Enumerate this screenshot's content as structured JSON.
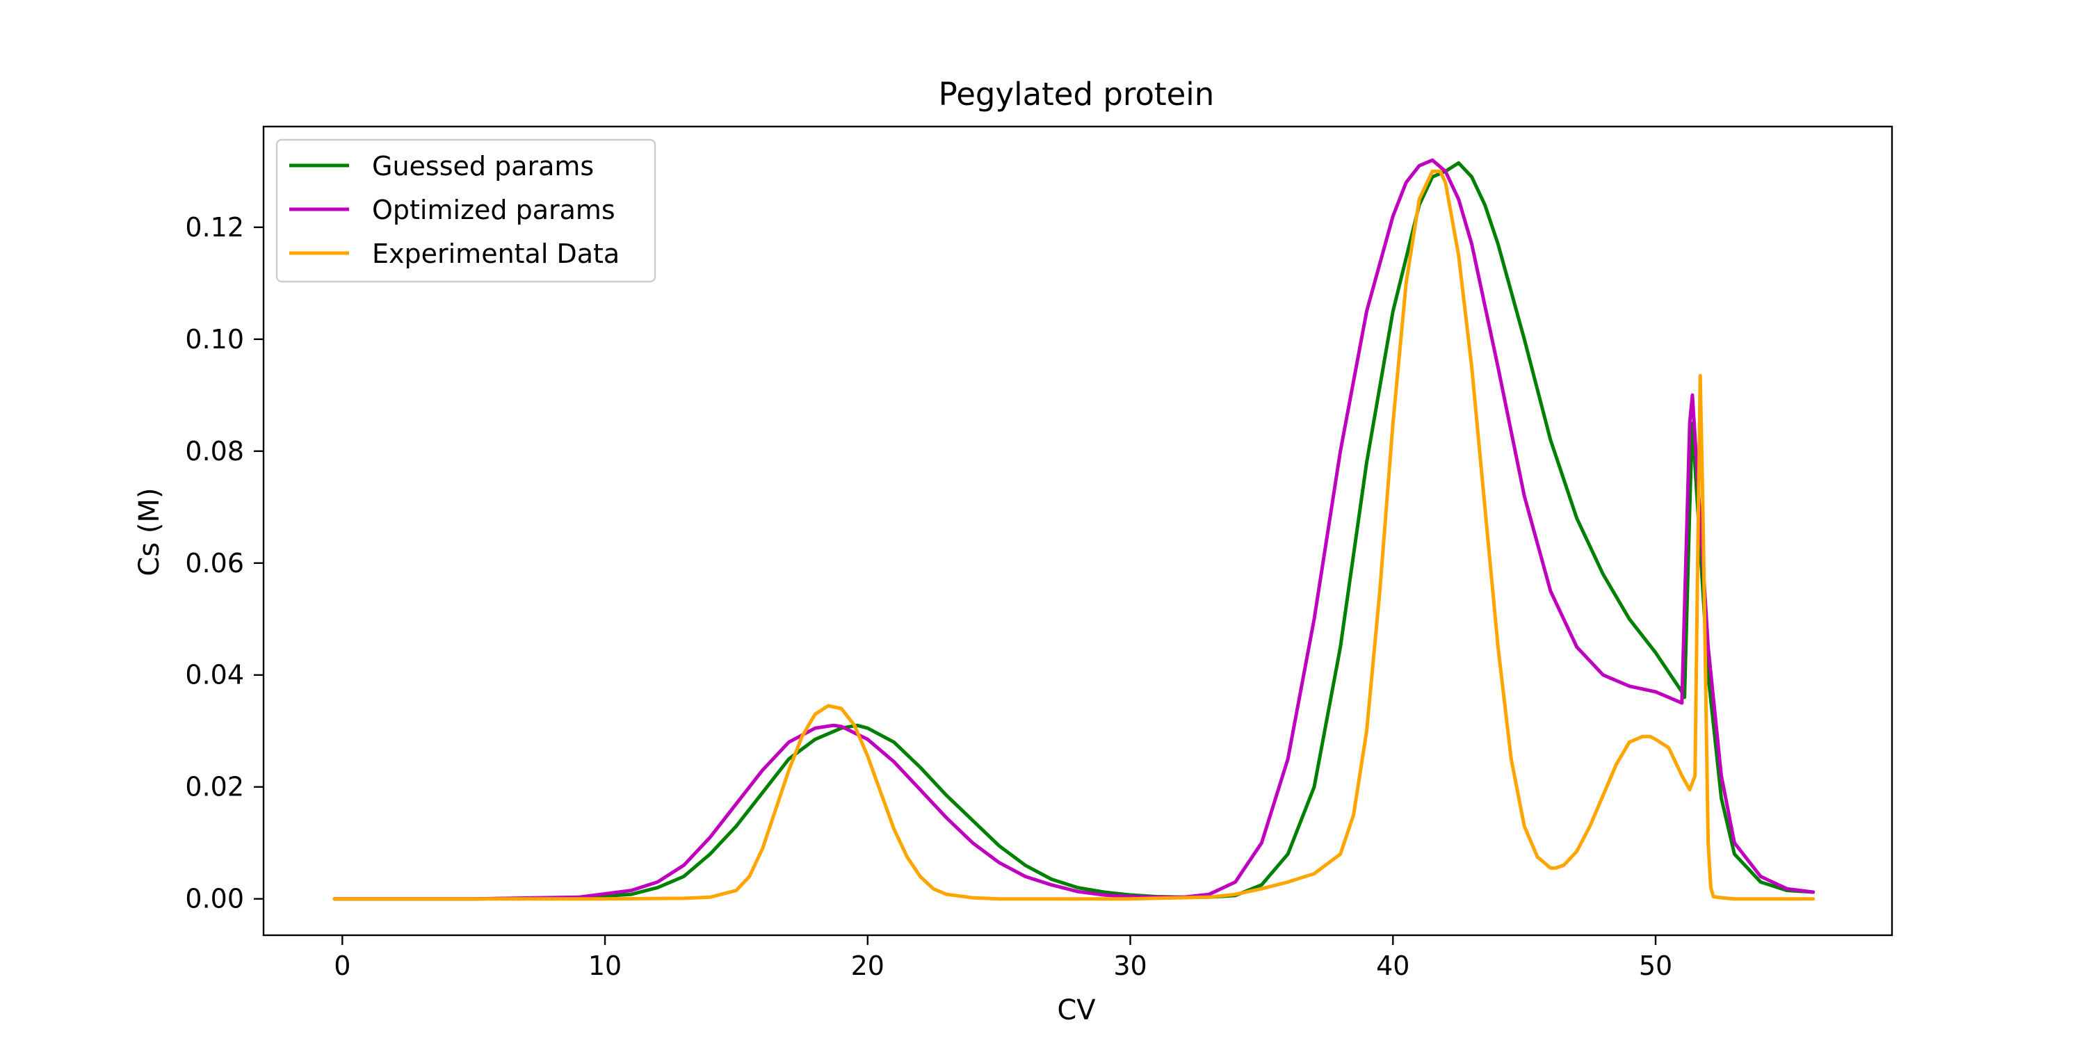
{
  "chart_data": {
    "type": "line",
    "title": "Pegylated protein",
    "xlabel": "CV",
    "ylabel": "Cs (M)",
    "xlim": [
      -3,
      59
    ],
    "ylim": [
      -0.0065,
      0.138
    ],
    "x_ticks": [
      0,
      10,
      20,
      30,
      40,
      50
    ],
    "x_tick_labels": [
      "0",
      "10",
      "20",
      "30",
      "40",
      "50"
    ],
    "y_ticks": [
      0.0,
      0.02,
      0.04,
      0.06,
      0.08,
      0.1,
      0.12
    ],
    "y_tick_labels": [
      "0.00",
      "0.02",
      "0.04",
      "0.06",
      "0.08",
      "0.10",
      "0.12"
    ],
    "grid": false,
    "legend_position": "top-left",
    "series": [
      {
        "name": "Guessed params",
        "color": "#008000",
        "x": [
          -0.3,
          5,
          9,
          11,
          12,
          13,
          14,
          15,
          16,
          17,
          18,
          19,
          19.6,
          20,
          21,
          22,
          23,
          24,
          25,
          26,
          27,
          28,
          29,
          30,
          31,
          32,
          33,
          34,
          35,
          36,
          37,
          38,
          39,
          40,
          41,
          41.5,
          42,
          42.5,
          43,
          43.5,
          44,
          45,
          46,
          47,
          48,
          49,
          50,
          51,
          51.1,
          51.3,
          51.4,
          51.6,
          52,
          52.5,
          53,
          54,
          55,
          56
        ],
        "y": [
          0,
          0,
          0.0002,
          0.0008,
          0.002,
          0.004,
          0.008,
          0.013,
          0.019,
          0.025,
          0.0285,
          0.0305,
          0.031,
          0.0305,
          0.028,
          0.0235,
          0.0185,
          0.014,
          0.0095,
          0.006,
          0.0035,
          0.002,
          0.0012,
          0.0007,
          0.0004,
          0.0003,
          0.0003,
          0.0006,
          0.0025,
          0.008,
          0.02,
          0.045,
          0.078,
          0.105,
          0.124,
          0.129,
          0.13,
          0.1315,
          0.129,
          0.124,
          0.117,
          0.1,
          0.082,
          0.068,
          0.058,
          0.05,
          0.044,
          0.037,
          0.036,
          0.07,
          0.085,
          0.07,
          0.04,
          0.018,
          0.008,
          0.003,
          0.0015,
          0.0012
        ]
      },
      {
        "name": "Optimized params",
        "color": "#bf00bf",
        "x": [
          -0.3,
          5,
          9,
          11,
          12,
          13,
          14,
          15,
          16,
          17,
          18,
          18.7,
          19,
          20,
          21,
          22,
          23,
          24,
          25,
          26,
          27,
          28,
          29,
          30,
          31,
          32,
          33,
          34,
          35,
          36,
          37,
          38,
          39,
          40,
          40.5,
          41,
          41.5,
          42,
          42.5,
          43,
          44,
          45,
          46,
          47,
          48,
          49,
          50,
          50.5,
          51,
          51.3,
          51.4,
          51.6,
          52,
          52.5,
          53,
          54,
          55,
          56
        ],
        "y": [
          0,
          0,
          0.0003,
          0.0015,
          0.003,
          0.006,
          0.011,
          0.017,
          0.023,
          0.028,
          0.0305,
          0.031,
          0.0308,
          0.0285,
          0.0245,
          0.0195,
          0.0145,
          0.01,
          0.0065,
          0.004,
          0.0025,
          0.0013,
          0.0007,
          0.0004,
          0.0003,
          0.0003,
          0.0008,
          0.003,
          0.01,
          0.025,
          0.05,
          0.08,
          0.105,
          0.122,
          0.128,
          0.131,
          0.132,
          0.13,
          0.125,
          0.117,
          0.095,
          0.072,
          0.055,
          0.045,
          0.04,
          0.038,
          0.037,
          0.036,
          0.035,
          0.085,
          0.09,
          0.075,
          0.045,
          0.022,
          0.01,
          0.004,
          0.0018,
          0.0012
        ]
      },
      {
        "name": "Experimental Data",
        "color": "#ffa500",
        "x": [
          -0.3,
          5,
          10,
          13,
          14,
          15,
          15.5,
          16,
          16.5,
          17,
          17.5,
          18,
          18.5,
          19,
          19.5,
          20,
          20.5,
          21,
          21.5,
          22,
          22.5,
          23,
          24,
          25,
          30,
          33,
          34,
          35,
          36,
          37,
          38,
          38.5,
          39,
          39.5,
          40,
          40.5,
          41,
          41.5,
          41.8,
          42,
          42.5,
          43,
          43.5,
          44,
          44.5,
          45,
          45.5,
          46,
          46.2,
          46.5,
          47,
          47.5,
          48,
          48.5,
          49,
          49.5,
          49.8,
          50,
          50.5,
          51,
          51.3,
          51.5,
          51.6,
          51.7,
          51.8,
          51.9,
          52,
          52.1,
          52.2,
          52.5,
          53,
          56
        ],
        "y": [
          0,
          0,
          0,
          0.0001,
          0.0003,
          0.0015,
          0.004,
          0.009,
          0.016,
          0.023,
          0.029,
          0.033,
          0.0345,
          0.034,
          0.031,
          0.0255,
          0.019,
          0.0125,
          0.0075,
          0.004,
          0.0018,
          0.0008,
          0.0002,
          0,
          0,
          0.0003,
          0.0008,
          0.0018,
          0.003,
          0.0045,
          0.008,
          0.015,
          0.03,
          0.055,
          0.085,
          0.11,
          0.125,
          0.13,
          0.13,
          0.128,
          0.115,
          0.095,
          0.07,
          0.045,
          0.025,
          0.013,
          0.0075,
          0.0055,
          0.0055,
          0.006,
          0.0085,
          0.013,
          0.0185,
          0.024,
          0.028,
          0.029,
          0.029,
          0.0285,
          0.027,
          0.022,
          0.0195,
          0.022,
          0.06,
          0.0935,
          0.07,
          0.04,
          0.01,
          0.002,
          0.0004,
          0.0002,
          0,
          0
        ]
      }
    ]
  }
}
